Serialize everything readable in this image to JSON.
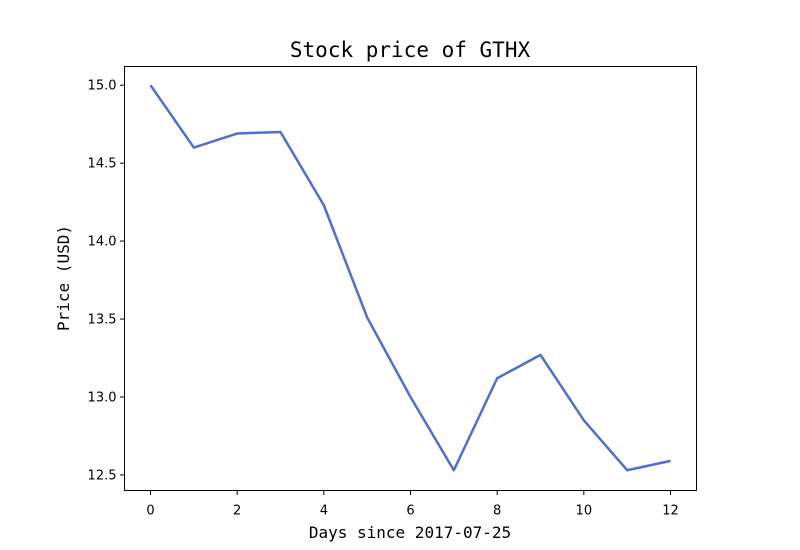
{
  "chart_data": {
    "type": "line",
    "title": "Stock price of GTHX",
    "xlabel": "Days since 2017-07-25",
    "ylabel": "Price (USD)",
    "x": [
      0,
      1,
      2,
      3,
      4,
      5,
      6,
      7,
      8,
      9,
      10,
      11,
      12
    ],
    "series": [
      {
        "values": [
          15.0,
          14.6,
          14.69,
          14.7,
          14.23,
          13.51,
          13.0,
          12.53,
          13.12,
          13.27,
          12.85,
          12.53,
          12.59
        ],
        "color": "#4e6fcf"
      }
    ],
    "xticks": [
      0,
      2,
      4,
      6,
      8,
      10,
      12
    ],
    "yticks": [
      12.5,
      13.0,
      13.5,
      14.0,
      14.5,
      15.0
    ],
    "xtick_labels": [
      "0",
      "2",
      "4",
      "6",
      "8",
      "10",
      "12"
    ],
    "ytick_labels": [
      "12.5",
      "13.0",
      "13.5",
      "14.0",
      "14.5",
      "15.0"
    ],
    "xlim": [
      -0.6,
      12.6
    ],
    "ylim": [
      12.4,
      15.12
    ],
    "grid": false,
    "legend": "none"
  }
}
